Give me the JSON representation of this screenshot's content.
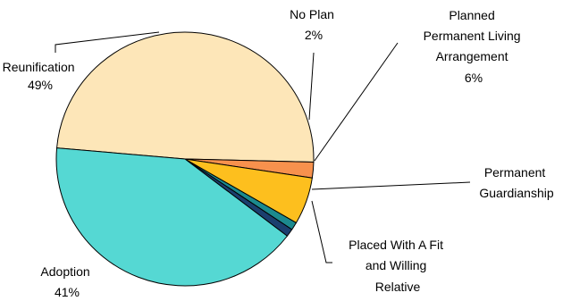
{
  "chart_data": {
    "type": "pie",
    "title": "",
    "slices": [
      {
        "label": "Reunification",
        "value": 49,
        "value_text": "49%",
        "color": "#FDE6B8"
      },
      {
        "label": "No Plan",
        "value": 2,
        "value_text": "2%",
        "color": "#F7914D"
      },
      {
        "label": "Planned Permanent Living Arrangement",
        "label_lines": [
          "Planned",
          "Permanent Living",
          "Arrangement"
        ],
        "value": 6,
        "value_text": "6%",
        "color": "#FDBF1E"
      },
      {
        "label": "Permanent Guardianship",
        "label_lines": [
          "Permanent",
          "Guardianship"
        ],
        "value": 1,
        "value_text": "",
        "color": "#1C8A8E"
      },
      {
        "label": "Placed With A Fit and Willing Relative",
        "label_lines": [
          "Placed With A Fit",
          "and Willing",
          "Relative"
        ],
        "value": 1,
        "value_text": "",
        "color": "#1B3F6E"
      },
      {
        "label": "Adoption",
        "value": 41,
        "value_text": "41%",
        "color": "#55D8D3"
      }
    ],
    "legend": false
  }
}
